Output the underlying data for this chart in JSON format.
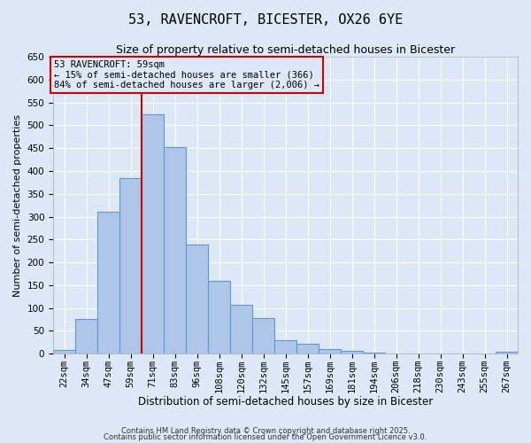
{
  "title": "53, RAVENCROFT, BICESTER, OX26 6YE",
  "subtitle": "Size of property relative to semi-detached houses in Bicester",
  "xlabel": "Distribution of semi-detached houses by size in Bicester",
  "ylabel": "Number of semi-detached properties",
  "bar_labels": [
    "22sqm",
    "34sqm",
    "47sqm",
    "59sqm",
    "71sqm",
    "83sqm",
    "96sqm",
    "108sqm",
    "120sqm",
    "132sqm",
    "145sqm",
    "157sqm",
    "169sqm",
    "181sqm",
    "194sqm",
    "206sqm",
    "218sqm",
    "230sqm",
    "243sqm",
    "255sqm",
    "267sqm"
  ],
  "bar_values": [
    8,
    76,
    310,
    385,
    525,
    452,
    238,
    160,
    107,
    78,
    30,
    22,
    9,
    6,
    3,
    0,
    0,
    0,
    0,
    0,
    4
  ],
  "bar_color": "#aec6e8",
  "bar_edge_color": "#5b9bd5",
  "background_color": "#dce8f5",
  "grid_color": "#ffffff",
  "vline_color": "#cc0000",
  "annotation_text": "53 RAVENCROFT: 59sqm\n← 15% of semi-detached houses are smaller (366)\n84% of semi-detached houses are larger (2,006) →",
  "annotation_box_color": "#cc0000",
  "ylim": [
    0,
    650
  ],
  "yticks": [
    0,
    50,
    100,
    150,
    200,
    250,
    300,
    350,
    400,
    450,
    500,
    550,
    600,
    650
  ],
  "footer_text1": "Contains HM Land Registry data © Crown copyright and database right 2025.",
  "footer_text2": "Contains public sector information licensed under the Open Government Licence v3.0.",
  "title_fontsize": 11,
  "subtitle_fontsize": 9,
  "annotation_fontsize": 7.5,
  "tick_fontsize": 7.5,
  "ylabel_fontsize": 8,
  "xlabel_fontsize": 8.5,
  "footer_fontsize": 6
}
